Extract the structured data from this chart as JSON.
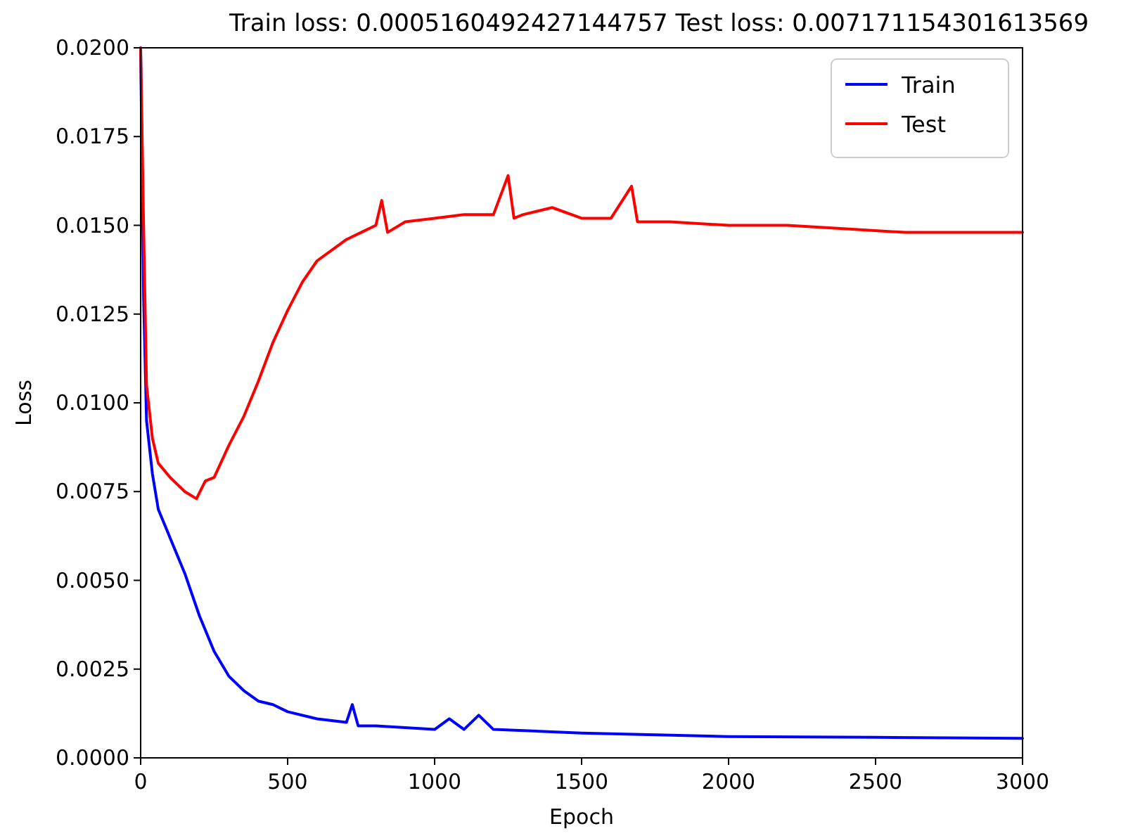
{
  "chart_data": {
    "type": "line",
    "title": "Train loss: 0.0005160492427144757 Test loss: 0.007171154301613569",
    "xlabel": "Epoch",
    "ylabel": "Loss",
    "xlim": [
      0,
      3000
    ],
    "ylim": [
      0,
      0.02
    ],
    "xticks": [
      0,
      500,
      1000,
      1500,
      2000,
      2500,
      3000
    ],
    "yticks": [
      {
        "value": 0,
        "label": "0.0000"
      },
      {
        "value": 0.0025,
        "label": "0.0025"
      },
      {
        "value": 0.005,
        "label": "0.0050"
      },
      {
        "value": 0.0075,
        "label": "0.0075"
      },
      {
        "value": 0.01,
        "label": "0.0100"
      },
      {
        "value": 0.0125,
        "label": "0.0125"
      },
      {
        "value": 0.015,
        "label": "0.0150"
      },
      {
        "value": 0.0175,
        "label": "0.0175"
      },
      {
        "value": 0.02,
        "label": "0.0200"
      }
    ],
    "legend": "top right",
    "grid": false,
    "marker": "none",
    "line_style": "solid",
    "series": [
      {
        "name": "Train",
        "color": "#0000ff",
        "x": [
          0,
          10,
          20,
          40,
          60,
          100,
          150,
          200,
          250,
          300,
          350,
          400,
          450,
          500,
          600,
          700,
          720,
          740,
          800,
          1000,
          1050,
          1100,
          1150,
          1200,
          1500,
          2000,
          2500,
          3000
        ],
        "values": [
          0.02,
          0.013,
          0.0095,
          0.008,
          0.007,
          0.0062,
          0.0052,
          0.004,
          0.003,
          0.0023,
          0.0019,
          0.0016,
          0.0015,
          0.0013,
          0.0011,
          0.001,
          0.0015,
          0.0009,
          0.0009,
          0.0008,
          0.0011,
          0.0008,
          0.0012,
          0.0008,
          0.0007,
          0.0006,
          0.00058,
          0.00055
        ]
      },
      {
        "name": "Test",
        "color": "#ff0000",
        "x": [
          0,
          10,
          20,
          40,
          60,
          100,
          150,
          190,
          220,
          250,
          300,
          350,
          400,
          450,
          500,
          550,
          600,
          650,
          700,
          750,
          800,
          820,
          840,
          900,
          1000,
          1100,
          1200,
          1250,
          1270,
          1300,
          1400,
          1500,
          1600,
          1670,
          1690,
          1800,
          2000,
          2200,
          2400,
          2600,
          2800,
          3000
        ],
        "values": [
          0.02,
          0.015,
          0.0105,
          0.009,
          0.0083,
          0.0079,
          0.0075,
          0.0073,
          0.0078,
          0.0079,
          0.0088,
          0.0096,
          0.0106,
          0.0117,
          0.0126,
          0.0134,
          0.014,
          0.0143,
          0.0146,
          0.0148,
          0.015,
          0.0157,
          0.0148,
          0.0151,
          0.0152,
          0.0153,
          0.0153,
          0.0164,
          0.0152,
          0.0153,
          0.0155,
          0.0152,
          0.0152,
          0.0161,
          0.0151,
          0.0151,
          0.015,
          0.015,
          0.0149,
          0.0148,
          0.0148,
          0.0148
        ]
      }
    ]
  }
}
